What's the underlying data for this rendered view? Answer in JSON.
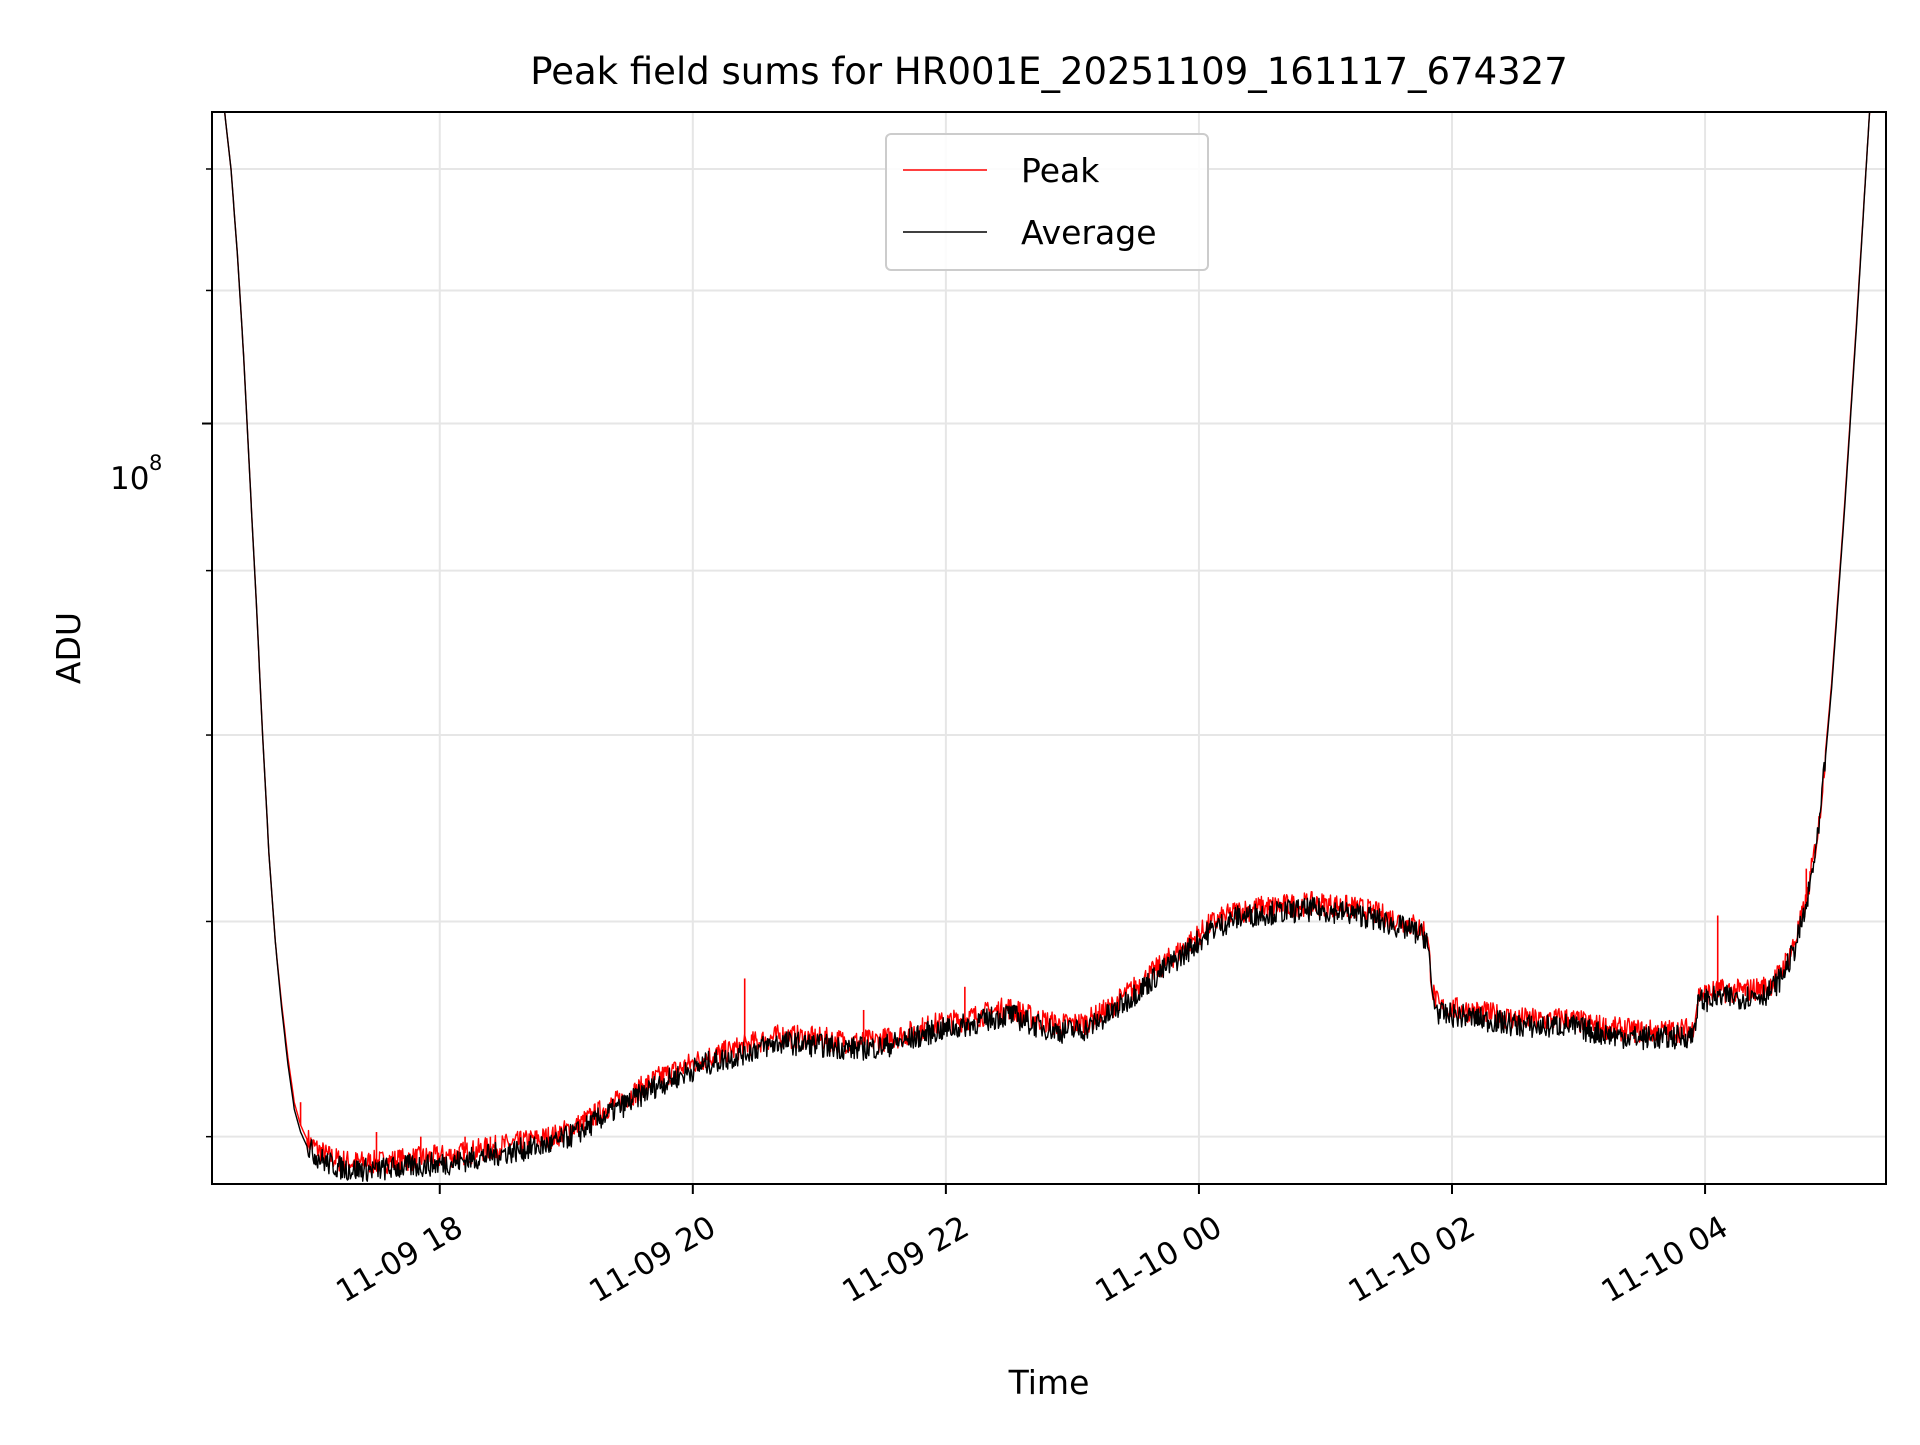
{
  "chart_data": {
    "type": "line",
    "title": "Peak field sums for HR001E_20251109_161117_674327",
    "xlabel": "Time",
    "ylabel": "ADU",
    "yscale": "log",
    "x_unit": "hours since 2025-11-09 00:00",
    "xlim": [
      16.2,
      29.43
    ],
    "ylim": [
      58000000.0,
      125000000.0
    ],
    "x_ticks": [
      {
        "value": 18,
        "label": "11-09 18"
      },
      {
        "value": 20,
        "label": "11-09 20"
      },
      {
        "value": 22,
        "label": "11-09 22"
      },
      {
        "value": 24,
        "label": "11-10 00"
      },
      {
        "value": 26,
        "label": "11-10 02"
      },
      {
        "value": 28,
        "label": "11-10 04"
      }
    ],
    "y_major_tick": {
      "value": 100000000.0,
      "base": "10",
      "exponent": "8"
    },
    "y_minor_ticks": [
      60000000.0,
      70000000.0,
      80000000.0,
      90000000.0,
      110000000.0,
      120000000.0
    ],
    "grid": true,
    "legend_position": "upper-center",
    "series": [
      {
        "name": "Peak",
        "color": "#ff0000",
        "x": [
          16.3,
          16.35,
          16.4,
          16.45,
          16.5,
          16.55,
          16.6,
          16.65,
          16.7,
          16.75,
          16.8,
          16.85,
          16.9,
          16.95,
          17.0,
          17.1,
          17.2,
          17.3,
          17.5,
          17.7,
          17.9,
          18.1,
          18.3,
          18.5,
          18.7,
          18.9,
          19.1,
          19.3,
          19.5,
          19.7,
          19.9,
          20.1,
          20.3,
          20.5,
          20.7,
          20.9,
          21.1,
          21.3,
          21.5,
          21.7,
          21.9,
          22.1,
          22.3,
          22.5,
          22.7,
          22.9,
          23.1,
          23.3,
          23.5,
          23.7,
          23.9,
          24.1,
          24.3,
          24.5,
          24.7,
          24.9,
          25.1,
          25.3,
          25.5,
          25.7,
          25.8,
          25.85,
          25.9,
          26.1,
          26.3,
          26.5,
          26.7,
          26.9,
          27.1,
          27.3,
          27.5,
          27.7,
          27.9,
          27.95,
          28.1,
          28.3,
          28.5,
          28.6,
          28.7,
          28.8,
          28.9,
          29.0,
          29.1,
          29.2,
          29.3
        ],
        "values": [
          125000000.0,
          120000000.0,
          113000000.0,
          105000000.0,
          96000000.0,
          88000000.0,
          80000000.0,
          73500000.0,
          69000000.0,
          66000000.0,
          63500000.0,
          61500000.0,
          60500000.0,
          59900000.0,
          59600000.0,
          59200000.0,
          59000000.0,
          58900000.0,
          58900000.0,
          59000000.0,
          59100000.0,
          59200000.0,
          59400000.0,
          59600000.0,
          59800000.0,
          60000000.0,
          60500000.0,
          61200000.0,
          61800000.0,
          62500000.0,
          63000000.0,
          63500000.0,
          63800000.0,
          64200000.0,
          64500000.0,
          64400000.0,
          64300000.0,
          64200000.0,
          64300000.0,
          64600000.0,
          65000000.0,
          65200000.0,
          65500000.0,
          65800000.0,
          65300000.0,
          65000000.0,
          65100000.0,
          65800000.0,
          66800000.0,
          67800000.0,
          68800000.0,
          69900000.0,
          70500000.0,
          70700000.0,
          70800000.0,
          70900000.0,
          70800000.0,
          70600000.0,
          70200000.0,
          69800000.0,
          69500000.0,
          66500000.0,
          65800000.0,
          65700000.0,
          65500000.0,
          65300000.0,
          65200000.0,
          65300000.0,
          65000000.0,
          64800000.0,
          64700000.0,
          64700000.0,
          64800000.0,
          66400000.0,
          66600000.0,
          66600000.0,
          66800000.0,
          67500000.0,
          68800000.0,
          71000000.0,
          75000000.0,
          83000000.0,
          94000000.0,
          108000000.0,
          125000000.0
        ],
        "spikes": [
          {
            "x": 16.9,
            "value": 61500000.0
          },
          {
            "x": 17.5,
            "value": 60200000.0
          },
          {
            "x": 17.85,
            "value": 60000000.0
          },
          {
            "x": 18.2,
            "value": 60000000.0
          },
          {
            "x": 18.4,
            "value": 60000000.0
          },
          {
            "x": 20.41,
            "value": 67200000.0
          },
          {
            "x": 21.35,
            "value": 65700000.0
          },
          {
            "x": 22.15,
            "value": 66800000.0
          },
          {
            "x": 28.1,
            "value": 70300000.0
          },
          {
            "x": 28.8,
            "value": 72700000.0
          }
        ]
      },
      {
        "name": "Average",
        "color": "#000000",
        "x": [
          16.3,
          16.35,
          16.4,
          16.45,
          16.5,
          16.55,
          16.6,
          16.65,
          16.7,
          16.75,
          16.8,
          16.85,
          16.9,
          16.95,
          17.0,
          17.1,
          17.2,
          17.3,
          17.5,
          17.7,
          17.9,
          18.1,
          18.3,
          18.5,
          18.7,
          18.9,
          19.1,
          19.3,
          19.5,
          19.7,
          19.9,
          20.1,
          20.3,
          20.5,
          20.7,
          20.9,
          21.1,
          21.3,
          21.5,
          21.7,
          21.9,
          22.1,
          22.3,
          22.5,
          22.7,
          22.9,
          23.1,
          23.3,
          23.5,
          23.7,
          23.9,
          24.1,
          24.3,
          24.5,
          24.7,
          24.9,
          25.1,
          25.3,
          25.5,
          25.7,
          25.8,
          25.85,
          25.9,
          26.1,
          26.3,
          26.5,
          26.7,
          26.9,
          27.1,
          27.3,
          27.5,
          27.7,
          27.9,
          27.95,
          28.1,
          28.3,
          28.5,
          28.6,
          28.7,
          28.8,
          28.9,
          29.0,
          29.1,
          29.2,
          29.3
        ],
        "values": [
          125000000.0,
          120000000.0,
          113000000.0,
          105000000.0,
          96000000.0,
          88000000.0,
          80000000.0,
          73500000.0,
          69000000.0,
          65800000.0,
          63200000.0,
          61200000.0,
          60200000.0,
          59600000.0,
          59300000.0,
          58900000.0,
          58700000.0,
          58600000.0,
          58600000.0,
          58700000.0,
          58800000.0,
          58900000.0,
          59100000.0,
          59300000.0,
          59500000.0,
          59700000.0,
          60200000.0,
          60900000.0,
          61500000.0,
          62200000.0,
          62700000.0,
          63200000.0,
          63500000.0,
          63900000.0,
          64200000.0,
          64100000.0,
          64000000.0,
          63900000.0,
          64000000.0,
          64300000.0,
          64700000.0,
          64900000.0,
          65200000.0,
          65500000.0,
          65000000.0,
          64700000.0,
          64800000.0,
          65500000.0,
          66500000.0,
          67500000.0,
          68500000.0,
          69600000.0,
          70200000.0,
          70400000.0,
          70500000.0,
          70600000.0,
          70500000.0,
          70300000.0,
          69900000.0,
          69500000.0,
          69200000.0,
          66200000.0,
          65500000.0,
          65400000.0,
          65200000.0,
          65000000.0,
          64900000.0,
          65000000.0,
          64700000.0,
          64500000.0,
          64400000.0,
          64400000.0,
          64500000.0,
          66100000.0,
          66300000.0,
          66300000.0,
          66500000.0,
          67200000.0,
          68500000.0,
          70700000.0,
          74700000.0,
          82700000.0,
          93700000.0,
          107700000.0,
          125000000.0
        ]
      }
    ]
  }
}
